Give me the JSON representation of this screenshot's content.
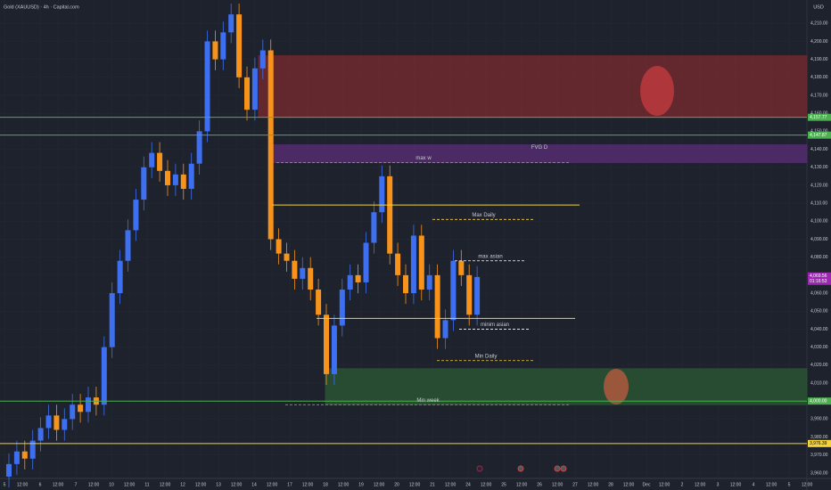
{
  "chart_data": {
    "type": "candlestick",
    "title": "Gold (XAUUSD) · 4h · Capital.com",
    "currency": "USD",
    "up_color": "#3d6ff0",
    "down_color": "#f7931a",
    "open": [
      3958,
      3965,
      3972,
      3968,
      3978,
      3985,
      3992,
      3984,
      3990,
      3998,
      3994,
      4002,
      3998,
      4030,
      4060,
      4078,
      4095,
      4112,
      4130,
      4138,
      4128,
      4120,
      4126,
      4118,
      4132,
      4150,
      4200,
      4190,
      4205,
      4215,
      4180,
      4162,
      4185,
      4195,
      4090,
      4082,
      4078,
      4068,
      4074,
      4062,
      4048,
      4015,
      4042,
      4062,
      4070,
      4066,
      4088,
      4105,
      4125,
      4082,
      4070,
      4060,
      4092,
      4062,
      4070,
      4035,
      4045,
      4078,
      4070,
      4048
    ],
    "high": [
      3971,
      3978,
      3978,
      3984,
      3991,
      3998,
      3998,
      3996,
      4004,
      4004,
      4008,
      4008,
      4036,
      4066,
      4084,
      4101,
      4118,
      4136,
      4144,
      4144,
      4134,
      4132,
      4132,
      4138,
      4156,
      4206,
      4206,
      4211,
      4221,
      4221,
      4186,
      4191,
      4201,
      4201,
      4096,
      4088,
      4084,
      4080,
      4080,
      4068,
      4054,
      4048,
      4068,
      4076,
      4076,
      4094,
      4111,
      4131,
      4131,
      4088,
      4076,
      4098,
      4098,
      4076,
      4076,
      4051,
      4084,
      4084,
      4076,
      4075
    ],
    "low": [
      3952,
      3959,
      3962,
      3962,
      3972,
      3979,
      3978,
      3978,
      3984,
      3988,
      3988,
      3992,
      3992,
      4024,
      4054,
      4072,
      4089,
      4106,
      4124,
      4122,
      4114,
      4114,
      4112,
      4112,
      4126,
      4144,
      4184,
      4184,
      4199,
      4174,
      4156,
      4156,
      4179,
      4084,
      4076,
      4072,
      4062,
      4062,
      4056,
      4042,
      4009,
      4009,
      4036,
      4056,
      4060,
      4060,
      4082,
      4099,
      4076,
      4064,
      4054,
      4054,
      4056,
      4056,
      4029,
      4029,
      4039,
      4064,
      4042,
      4042
    ],
    "close": [
      3965,
      3972,
      3968,
      3978,
      3985,
      3992,
      3984,
      3990,
      3998,
      3994,
      4002,
      3998,
      4030,
      4060,
      4078,
      4095,
      4112,
      4130,
      4138,
      4128,
      4120,
      4126,
      4118,
      4132,
      4150,
      4200,
      4190,
      4205,
      4215,
      4180,
      4162,
      4185,
      4195,
      4090,
      4082,
      4078,
      4068,
      4074,
      4062,
      4048,
      4015,
      4042,
      4062,
      4070,
      4066,
      4088,
      4105,
      4125,
      4082,
      4070,
      4060,
      4092,
      4062,
      4070,
      4035,
      4045,
      4078,
      4070,
      4048,
      4069
    ],
    "ylim": [
      3957,
      4223
    ],
    "yticks": [
      {
        "value": 4210,
        "label": "4,210.00"
      },
      {
        "value": 4200,
        "label": "4,200.00"
      },
      {
        "value": 4190,
        "label": "4,190.00"
      },
      {
        "value": 4180,
        "label": "4,180.00"
      },
      {
        "value": 4170,
        "label": "4,170.00"
      },
      {
        "value": 4160,
        "label": "4,160.00"
      },
      {
        "value": 4150,
        "label": "4,150.00"
      },
      {
        "value": 4140,
        "label": "4,140.00"
      },
      {
        "value": 4130,
        "label": "4,130.00"
      },
      {
        "value": 4120,
        "label": "4,120.00"
      },
      {
        "value": 4110,
        "label": "4,110.00"
      },
      {
        "value": 4100,
        "label": "4,100.00"
      },
      {
        "value": 4090,
        "label": "4,090.00"
      },
      {
        "value": 4080,
        "label": "4,080.00"
      },
      {
        "value": 4070,
        "label": "4,070.00"
      },
      {
        "value": 4060,
        "label": "4,060.00"
      },
      {
        "value": 4050,
        "label": "4,050.00"
      },
      {
        "value": 4040,
        "label": "4,040.00"
      },
      {
        "value": 4030,
        "label": "4,030.00"
      },
      {
        "value": 4020,
        "label": "4,020.00"
      },
      {
        "value": 4010,
        "label": "4,010.00"
      },
      {
        "value": 3990,
        "label": "3,990.00"
      },
      {
        "value": 3980,
        "label": "3,980.00"
      },
      {
        "value": 3970,
        "label": "3,970.00"
      },
      {
        "value": 3960,
        "label": "3,960.00"
      }
    ],
    "x_labels": [
      "5",
      "12:00",
      "6",
      "12:00",
      "7",
      "12:00",
      "10",
      "12:00",
      "11",
      "12:00",
      "12",
      "12:00",
      "13",
      "12:00",
      "14",
      "12:00",
      "17",
      "12:00",
      "18",
      "12:00",
      "19",
      "12:00",
      "20",
      "12:00",
      "21",
      "12:00",
      "24",
      "12:00",
      "25",
      "12:00",
      "26",
      "12:00",
      "27",
      "12:00",
      "28",
      "12:00",
      "Dec",
      "12:00",
      "2",
      "12:00",
      "3",
      "12:00",
      "4",
      "12:00",
      "5",
      "12:00"
    ],
    "zones": [
      {
        "range": [
          4157.77,
          4192
        ],
        "color": "#7a2a2e"
      },
      {
        "label": "FVG D",
        "range": [
          4132.6,
          4142.5
        ],
        "color": "#5a2d7a"
      },
      {
        "range": [
          3998,
          4018
        ],
        "color": "#2b5a34"
      }
    ],
    "levels": [
      {
        "value": 4157.77,
        "color": "#4caf50",
        "style": "solid"
      },
      {
        "value": 4147.87,
        "color": "#4caf50",
        "style": "solid"
      },
      {
        "value": 4000,
        "color": "#4caf50",
        "style": "solid"
      },
      {
        "value": 3976.39,
        "color": "#f5d33b",
        "style": "solid"
      },
      {
        "value": 4109,
        "color": "#f5d33b",
        "style": "solid"
      },
      {
        "value": 4046,
        "color": "#f5d33b",
        "style": "solid"
      },
      {
        "label": "max w",
        "value": 4132.6,
        "color": "#9e9e9e",
        "style": "dashed"
      },
      {
        "label": "Max Daily",
        "value": 4101,
        "color": "#f5d33b",
        "style": "dashed"
      },
      {
        "label": "max asian",
        "value": 4078,
        "color": "#ffffff",
        "style": "dashed"
      },
      {
        "label": "minim asian",
        "value": 4040,
        "color": "#ffffff",
        "style": "dashed"
      },
      {
        "label": "Min Daily",
        "value": 4022.5,
        "color": "#f5d33b",
        "style": "dashed"
      },
      {
        "label": "Min week",
        "value": 3998,
        "color": "#9e9e9e",
        "style": "dashed"
      }
    ],
    "price_badges": [
      {
        "value": 4157.77,
        "label": "4,157.77",
        "color": "#4caf50"
      },
      {
        "value": 4147.87,
        "label": "4,147.87",
        "color": "#4caf50"
      },
      {
        "value": 4069.56,
        "label": "4,069.56",
        "color": "#9c27b0",
        "sub": "01:16:53"
      },
      {
        "value": 4000,
        "label": "4,000.00",
        "color": "#4caf50"
      },
      {
        "value": 3976.39,
        "label": "3,976.39",
        "color": "#f5d33b"
      }
    ]
  }
}
